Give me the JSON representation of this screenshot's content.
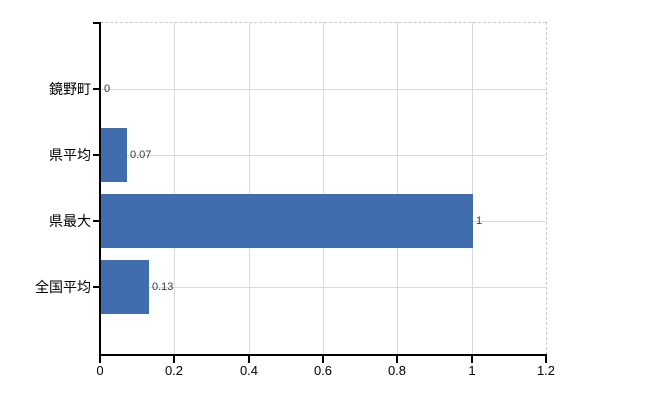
{
  "chart_data": {
    "type": "bar",
    "orientation": "horizontal",
    "title": "",
    "xlabel": "",
    "ylabel": "",
    "categories": [
      "鏡野町",
      "県平均",
      "県最大",
      "全国平均"
    ],
    "values": [
      0,
      0.07,
      1,
      0.13
    ],
    "value_labels": [
      "0",
      "0.07",
      "1",
      "0.13"
    ],
    "x_ticks": [
      0,
      0.2,
      0.4,
      0.6,
      0.8,
      1,
      1.2
    ],
    "x_tick_labels": [
      "0",
      "0.2",
      "0.4",
      "0.6",
      "0.8",
      "1",
      "1.2"
    ],
    "xlim": [
      0,
      1.2
    ],
    "grid": true,
    "legend": null,
    "colors": {
      "bar": "#3f6dae",
      "axis": "#000000",
      "gridline": "#d9d9d9",
      "dashed_border": "#c9c9c9",
      "value_label": "#3a3a3a",
      "tick_label": "#000000",
      "background": "#ffffff"
    }
  }
}
